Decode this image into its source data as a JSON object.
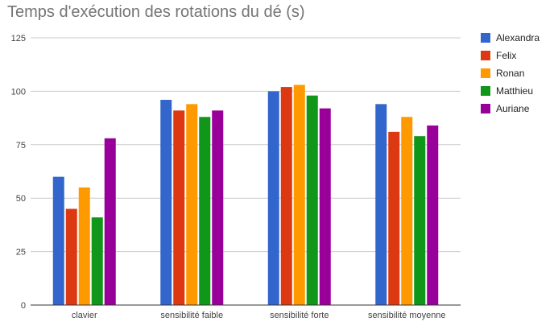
{
  "chart_data": {
    "type": "bar",
    "title": "Temps d'exécution des rotations du dé (s)",
    "xlabel": "",
    "ylabel": "",
    "categories": [
      "clavier",
      "sensibilité faible",
      "sensibilité forte",
      "sensibilité moyenne"
    ],
    "series": [
      {
        "name": "Alexandra",
        "color": "#3366cc",
        "values": [
          60,
          96,
          100,
          94
        ]
      },
      {
        "name": "Felix",
        "color": "#dc3912",
        "values": [
          45,
          91,
          102,
          81
        ]
      },
      {
        "name": "Ronan",
        "color": "#ff9900",
        "values": [
          55,
          94,
          103,
          88
        ]
      },
      {
        "name": "Matthieu",
        "color": "#109618",
        "values": [
          41,
          88,
          98,
          79
        ]
      },
      {
        "name": "Auriane",
        "color": "#990099",
        "values": [
          78,
          91,
          92,
          84
        ]
      }
    ],
    "ylim": [
      0,
      125
    ],
    "yticks": [
      0,
      25,
      50,
      75,
      100,
      125
    ],
    "grid": true,
    "legend": "right"
  }
}
